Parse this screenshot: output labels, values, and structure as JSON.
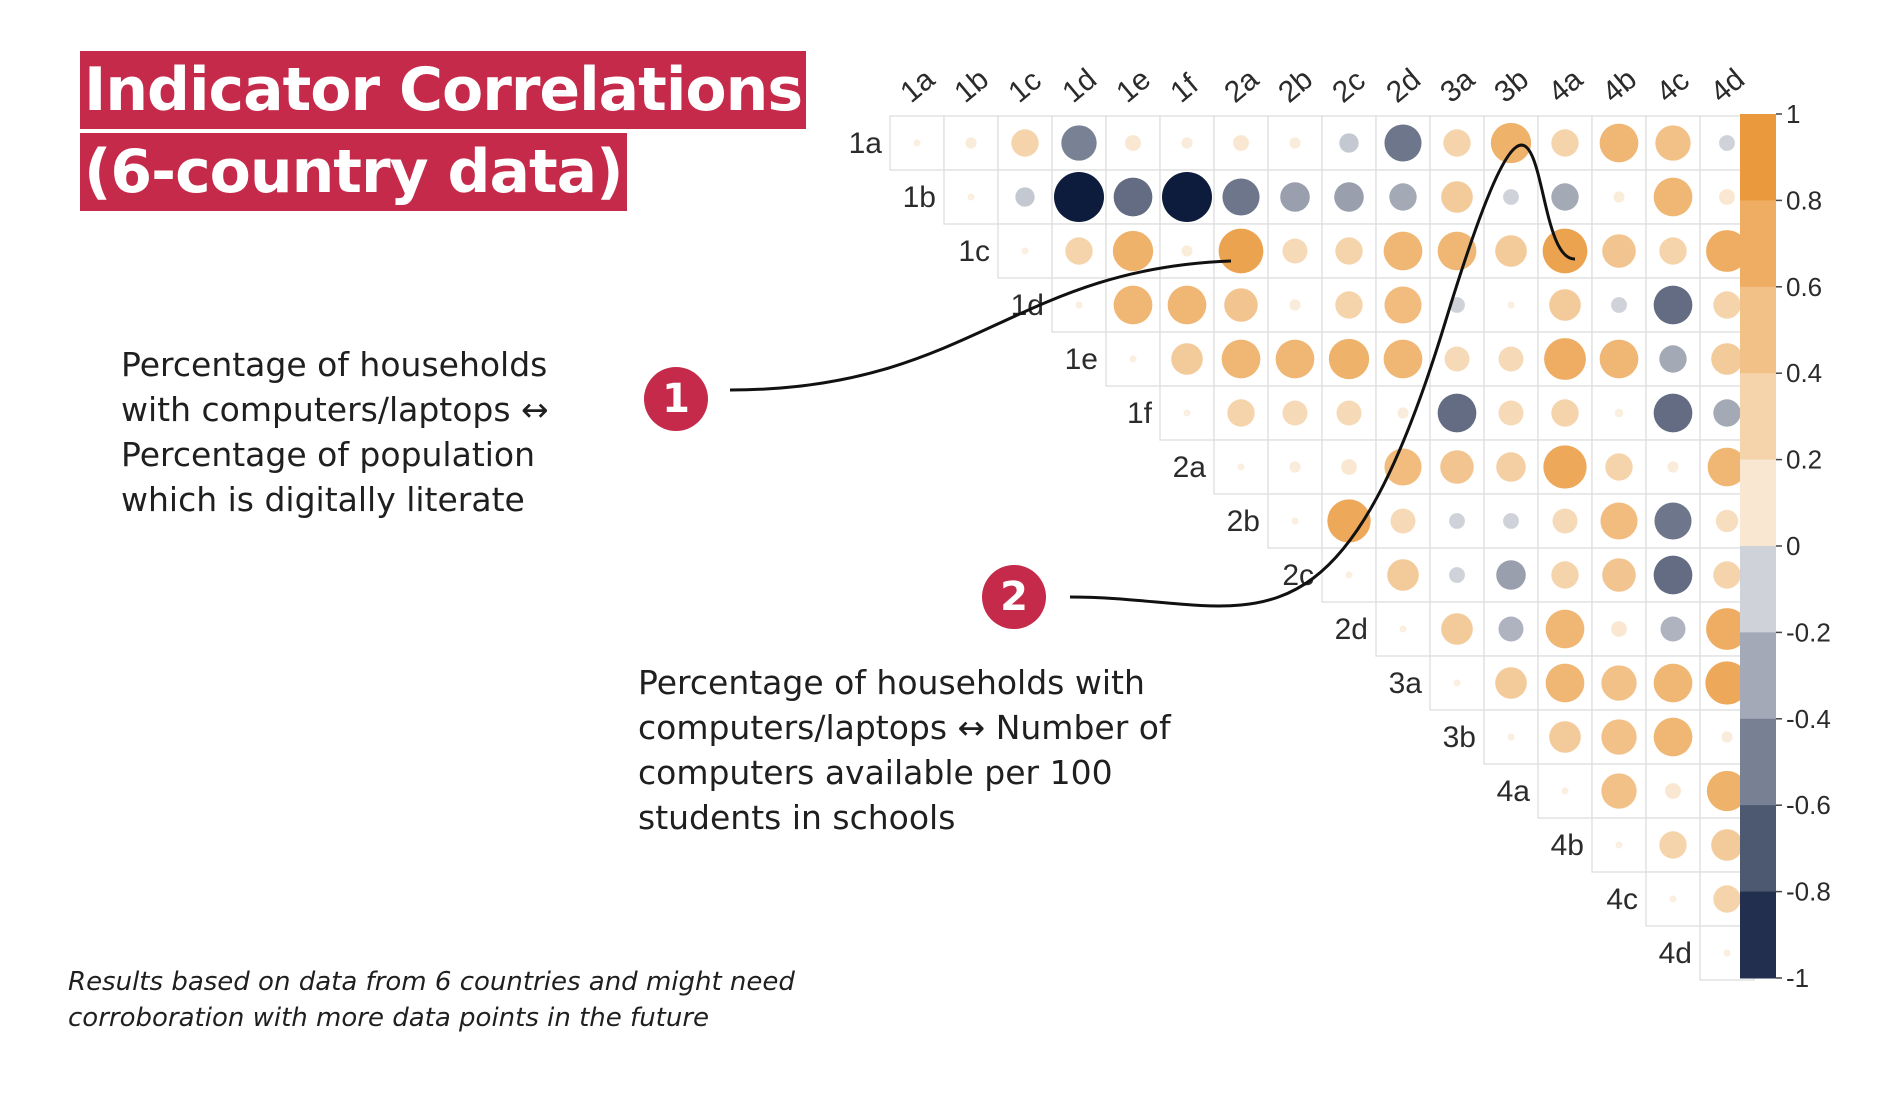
{
  "title": {
    "line1": "Indicator Correlations",
    "line2": "(6-country data)"
  },
  "annotations": [
    {
      "number": "1",
      "text": "Percentage of households\nwith computers/laptops ↔\nPercentage of population\nwhich is digitally literate"
    },
    {
      "number": "2",
      "text": "Percentage of households with\ncomputers/laptops ↔ Number of\ncomputers available per 100\nstudents in schools"
    }
  ],
  "footnote": "Results based on data from 6 countries and might need\ncorroboration with more data points in the future",
  "colors": {
    "title_bg": "#c62a4b",
    "marker": "#c62a4b",
    "positive": "#e8902a",
    "negative": "#0d1b3d",
    "neutral": "#f2f2f2"
  },
  "chart_data": {
    "type": "heatmap",
    "subtype": "correlation-circle-upper-triangle",
    "top_labels": [
      "1a",
      "1b",
      "1c",
      "1d",
      "1e",
      "1f",
      "2a",
      "2b",
      "2c",
      "2d",
      "3a",
      "3b",
      "4a",
      "4b",
      "4c",
      "4d"
    ],
    "row_labels": [
      "1a",
      "1b",
      "1c",
      "1d",
      "1e",
      "1f",
      "2a",
      "2b",
      "2c",
      "2d",
      "3a",
      "3b",
      "4a",
      "4b",
      "4c",
      "4d"
    ],
    "colorbar": {
      "min": -1,
      "max": 1,
      "ticks": [
        "1",
        "0.8",
        "0.6",
        "0.4",
        "0.2",
        "0",
        "-0.2",
        "-0.4",
        "-0.6",
        "-0.8",
        "-1"
      ]
    },
    "matrix": [
      [
        0.02,
        0.05,
        0.3,
        -0.5,
        0.1,
        0.05,
        0.1,
        0.05,
        -0.15,
        -0.55,
        0.3,
        0.65,
        0.3,
        0.6,
        0.5,
        -0.1
      ],
      [
        null,
        0.02,
        -0.15,
        -1.0,
        -0.6,
        -1.0,
        -0.55,
        -0.35,
        -0.35,
        -0.3,
        0.4,
        -0.1,
        -0.3,
        0.05,
        0.6,
        0.1
      ],
      [
        null,
        null,
        0.02,
        0.3,
        0.65,
        0.05,
        0.8,
        0.25,
        0.3,
        0.6,
        0.6,
        0.4,
        0.8,
        0.45,
        0.3,
        0.7
      ],
      [
        null,
        null,
        null,
        0.02,
        0.6,
        0.6,
        0.45,
        0.05,
        0.3,
        0.55,
        -0.1,
        0.02,
        0.4,
        -0.1,
        -0.6,
        0.3
      ],
      [
        null,
        null,
        null,
        null,
        0.02,
        0.4,
        0.6,
        0.6,
        0.65,
        0.6,
        0.25,
        0.25,
        0.7,
        0.6,
        -0.3,
        0.4
      ],
      [
        null,
        null,
        null,
        null,
        null,
        0.02,
        0.3,
        0.25,
        0.25,
        0.05,
        -0.6,
        0.25,
        0.3,
        0.03,
        -0.6,
        -0.3
      ],
      [
        null,
        null,
        null,
        null,
        null,
        null,
        0.02,
        0.05,
        0.1,
        0.55,
        0.45,
        0.35,
        0.75,
        0.3,
        0.05,
        0.6
      ],
      [
        null,
        null,
        null,
        null,
        null,
        null,
        null,
        0.02,
        0.75,
        0.25,
        -0.1,
        -0.1,
        0.25,
        0.55,
        -0.55,
        0.2
      ],
      [
        null,
        null,
        null,
        null,
        null,
        null,
        null,
        null,
        0.02,
        0.4,
        -0.1,
        -0.35,
        0.3,
        0.45,
        -0.6,
        0.3
      ],
      [
        null,
        null,
        null,
        null,
        null,
        null,
        null,
        null,
        null,
        0.02,
        0.4,
        -0.25,
        0.6,
        0.1,
        -0.25,
        0.7
      ],
      [
        null,
        null,
        null,
        null,
        null,
        null,
        null,
        null,
        null,
        null,
        0.02,
        0.4,
        0.6,
        0.5,
        0.6,
        0.75
      ],
      [
        null,
        null,
        null,
        null,
        null,
        null,
        null,
        null,
        null,
        null,
        null,
        0.02,
        0.4,
        0.5,
        0.6,
        0.05
      ],
      [
        null,
        null,
        null,
        null,
        null,
        null,
        null,
        null,
        null,
        null,
        null,
        null,
        0.02,
        0.5,
        0.1,
        0.65
      ],
      [
        null,
        null,
        null,
        null,
        null,
        null,
        null,
        null,
        null,
        null,
        null,
        null,
        null,
        0.02,
        0.3,
        0.4
      ],
      [
        null,
        null,
        null,
        null,
        null,
        null,
        null,
        null,
        null,
        null,
        null,
        null,
        null,
        null,
        0.02,
        0.3
      ],
      [
        null,
        null,
        null,
        null,
        null,
        null,
        null,
        null,
        null,
        null,
        null,
        null,
        null,
        null,
        null,
        0.02
      ]
    ],
    "highlighted_cells": [
      {
        "marker": "1",
        "row": "1c",
        "col": "2a"
      },
      {
        "marker": "2",
        "row": "1c",
        "col": "4a"
      }
    ]
  }
}
